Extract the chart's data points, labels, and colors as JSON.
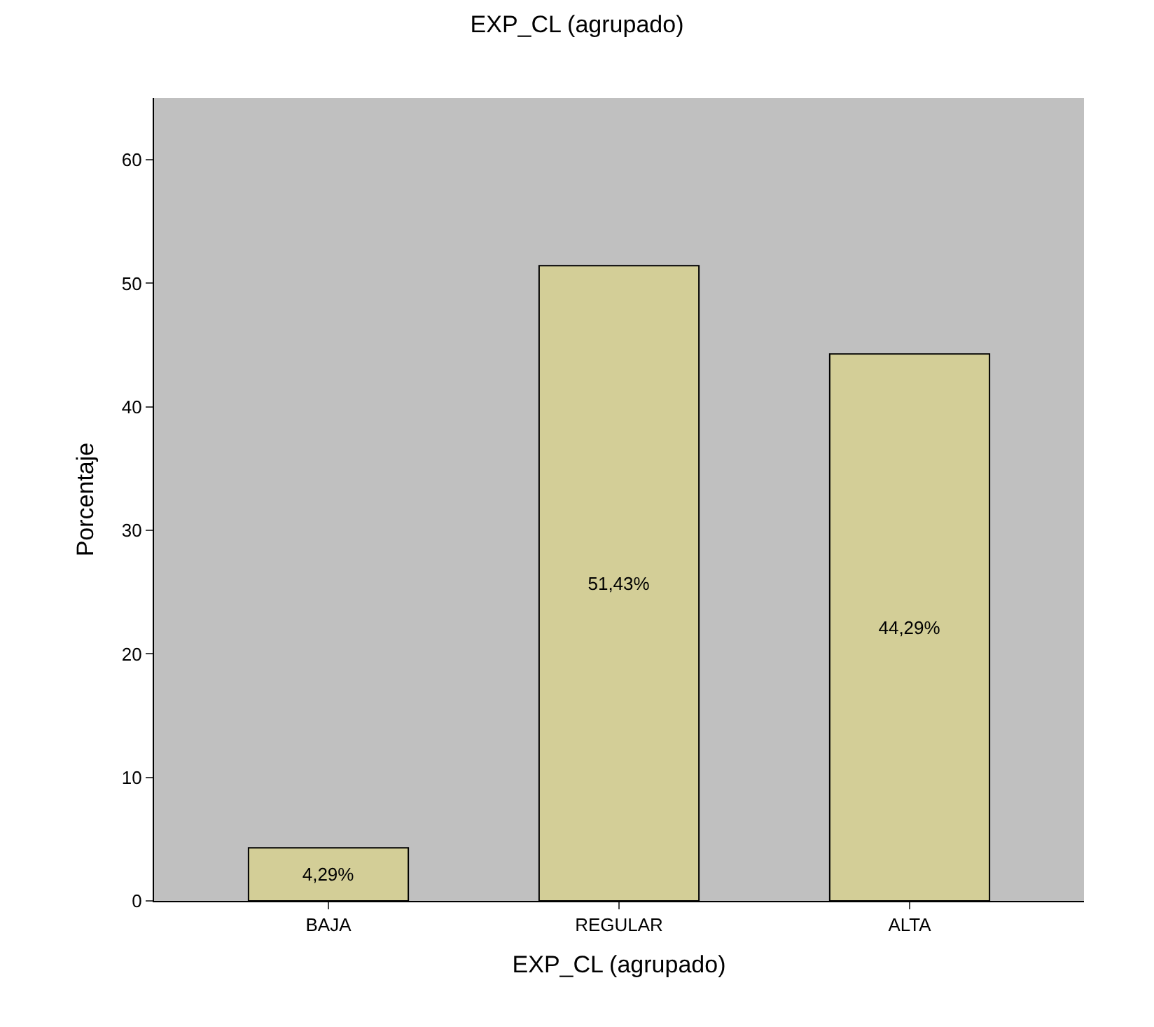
{
  "chart_data": {
    "type": "bar",
    "title": "EXP_CL (agrupado)",
    "xlabel": "EXP_CL (agrupado)",
    "ylabel": "Porcentaje",
    "categories": [
      "BAJA",
      "REGULAR",
      "ALTA"
    ],
    "values": [
      4.29,
      51.43,
      44.29
    ],
    "value_labels": [
      "4,29%",
      "51,43%",
      "44,29%"
    ],
    "color": "#d3ce97",
    "ylim": [
      0,
      65
    ],
    "yticks": [
      0,
      10,
      20,
      30,
      40,
      50,
      60
    ],
    "grid": false,
    "legend": false
  }
}
